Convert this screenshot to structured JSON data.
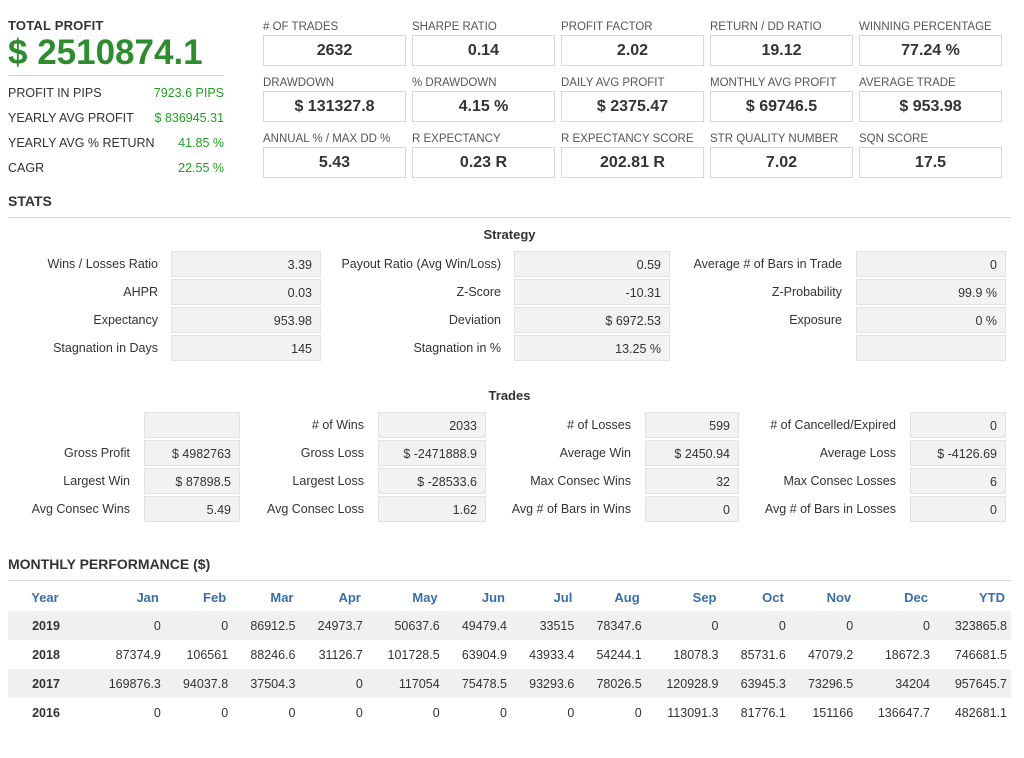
{
  "profit": {
    "title": "TOTAL PROFIT",
    "value": "$ 2510874.1",
    "rows": [
      {
        "label": "PROFIT IN PIPS",
        "value": "7923.6 PIPS"
      },
      {
        "label": "YEARLY AVG PROFIT",
        "value": "$ 836945.31"
      },
      {
        "label": "YEARLY AVG % RETURN",
        "value": "41.85 %"
      },
      {
        "label": "CAGR",
        "value": "22.55 %"
      }
    ]
  },
  "metrics": [
    {
      "label": "# OF TRADES",
      "value": "2632"
    },
    {
      "label": "SHARPE RATIO",
      "value": "0.14"
    },
    {
      "label": "PROFIT FACTOR",
      "value": "2.02"
    },
    {
      "label": "RETURN / DD RATIO",
      "value": "19.12"
    },
    {
      "label": "WINNING PERCENTAGE",
      "value": "77.24 %"
    },
    {
      "label": "DRAWDOWN",
      "value": "$ 131327.8"
    },
    {
      "label": "% DRAWDOWN",
      "value": "4.15 %"
    },
    {
      "label": "DAILY AVG PROFIT",
      "value": "$ 2375.47"
    },
    {
      "label": "MONTHLY AVG PROFIT",
      "value": "$ 69746.5"
    },
    {
      "label": "AVERAGE TRADE",
      "value": "$ 953.98"
    },
    {
      "label": "ANNUAL % / MAX DD %",
      "value": "5.43"
    },
    {
      "label": "R EXPECTANCY",
      "value": "0.23 R"
    },
    {
      "label": "R EXPECTANCY SCORE",
      "value": "202.81 R"
    },
    {
      "label": "STR QUALITY NUMBER",
      "value": "7.02"
    },
    {
      "label": "SQN SCORE",
      "value": "17.5"
    }
  ],
  "stats": {
    "title": "STATS",
    "strategy_title": "Strategy",
    "strategy": [
      [
        {
          "label": "Wins / Losses Ratio",
          "value": "3.39"
        },
        {
          "label": "Payout Ratio (Avg Win/Loss)",
          "value": "0.59"
        },
        {
          "label": "Average # of Bars in Trade",
          "value": "0"
        }
      ],
      [
        {
          "label": "AHPR",
          "value": "0.03"
        },
        {
          "label": "Z-Score",
          "value": "-10.31"
        },
        {
          "label": "Z-Probability",
          "value": "99.9 %"
        }
      ],
      [
        {
          "label": "Expectancy",
          "value": "953.98"
        },
        {
          "label": "Deviation",
          "value": "$ 6972.53"
        },
        {
          "label": "Exposure",
          "value": "0 %"
        }
      ],
      [
        {
          "label": "Stagnation in Days",
          "value": "145"
        },
        {
          "label": "Stagnation in %",
          "value": "13.25 %"
        },
        {
          "label": "",
          "value": ""
        }
      ]
    ],
    "trades_title": "Trades",
    "trades": [
      [
        {
          "label": "",
          "value": ""
        },
        {
          "label": "# of Wins",
          "value": "2033"
        },
        {
          "label": "# of Losses",
          "value": "599"
        },
        {
          "label": "# of Cancelled/Expired",
          "value": "0"
        }
      ],
      [
        {
          "label": "Gross Profit",
          "value": "$ 4982763"
        },
        {
          "label": "Gross Loss",
          "value": "$ -2471888.9"
        },
        {
          "label": "Average Win",
          "value": "$ 2450.94"
        },
        {
          "label": "Average Loss",
          "value": "$ -4126.69"
        }
      ],
      [
        {
          "label": "Largest Win",
          "value": "$ 87898.5"
        },
        {
          "label": "Largest Loss",
          "value": "$ -28533.6"
        },
        {
          "label": "Max Consec Wins",
          "value": "32"
        },
        {
          "label": "Max Consec Losses",
          "value": "6"
        }
      ],
      [
        {
          "label": "Avg Consec Wins",
          "value": "5.49"
        },
        {
          "label": "Avg Consec Loss",
          "value": "1.62"
        },
        {
          "label": "Avg # of Bars in Wins",
          "value": "0"
        },
        {
          "label": "Avg # of Bars in Losses",
          "value": "0"
        }
      ]
    ]
  },
  "monthly": {
    "title": "MONTHLY PERFORMANCE ($)",
    "headers": [
      "Year",
      "Jan",
      "Feb",
      "Mar",
      "Apr",
      "May",
      "Jun",
      "Jul",
      "Aug",
      "Sep",
      "Oct",
      "Nov",
      "Dec",
      "YTD"
    ],
    "rows": [
      [
        "2019",
        "0",
        "0",
        "86912.5",
        "24973.7",
        "50637.6",
        "49479.4",
        "33515",
        "78347.6",
        "0",
        "0",
        "0",
        "0",
        "323865.8"
      ],
      [
        "2018",
        "87374.9",
        "106561",
        "88246.6",
        "31126.7",
        "101728.5",
        "63904.9",
        "43933.4",
        "54244.1",
        "18078.3",
        "85731.6",
        "47079.2",
        "18672.3",
        "746681.5"
      ],
      [
        "2017",
        "169876.3",
        "94037.8",
        "37504.3",
        "0",
        "117054",
        "75478.5",
        "93293.6",
        "78026.5",
        "120928.9",
        "63945.3",
        "73296.5",
        "34204",
        "957645.7"
      ],
      [
        "2016",
        "0",
        "0",
        "0",
        "0",
        "0",
        "0",
        "0",
        "0",
        "113091.3",
        "81776.1",
        "151166",
        "136647.7",
        "482681.1"
      ]
    ]
  }
}
